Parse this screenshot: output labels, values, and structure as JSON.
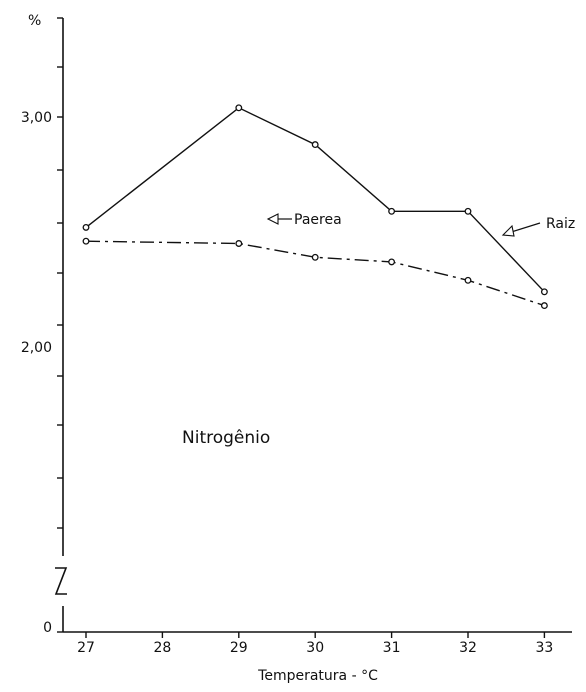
{
  "chart_data": {
    "type": "line",
    "x_label": "Temperatura - °C",
    "y_unit": "%",
    "x": [
      27,
      28,
      29,
      30,
      31,
      32,
      33
    ],
    "x_tick_labels": [
      "27",
      "28",
      "29",
      "30",
      "31",
      "32",
      "33"
    ],
    "y_tick_labels": [
      "3,00",
      "2,00",
      "0"
    ],
    "y_axis_break": true,
    "annotation": "Nitrogênio",
    "series": [
      {
        "name": "Raiz",
        "line_style": "solid",
        "marker": "circle",
        "x": [
          27,
          29,
          30,
          31,
          32,
          33
        ],
        "y": [
          2.52,
          3.04,
          2.88,
          2.59,
          2.59,
          2.24
        ]
      },
      {
        "name": "Paerea",
        "line_style": "dash-dot",
        "marker": "circle",
        "x": [
          27,
          29,
          30,
          31,
          32,
          33
        ],
        "y": [
          2.46,
          2.45,
          2.39,
          2.37,
          2.29,
          2.18
        ]
      }
    ]
  }
}
